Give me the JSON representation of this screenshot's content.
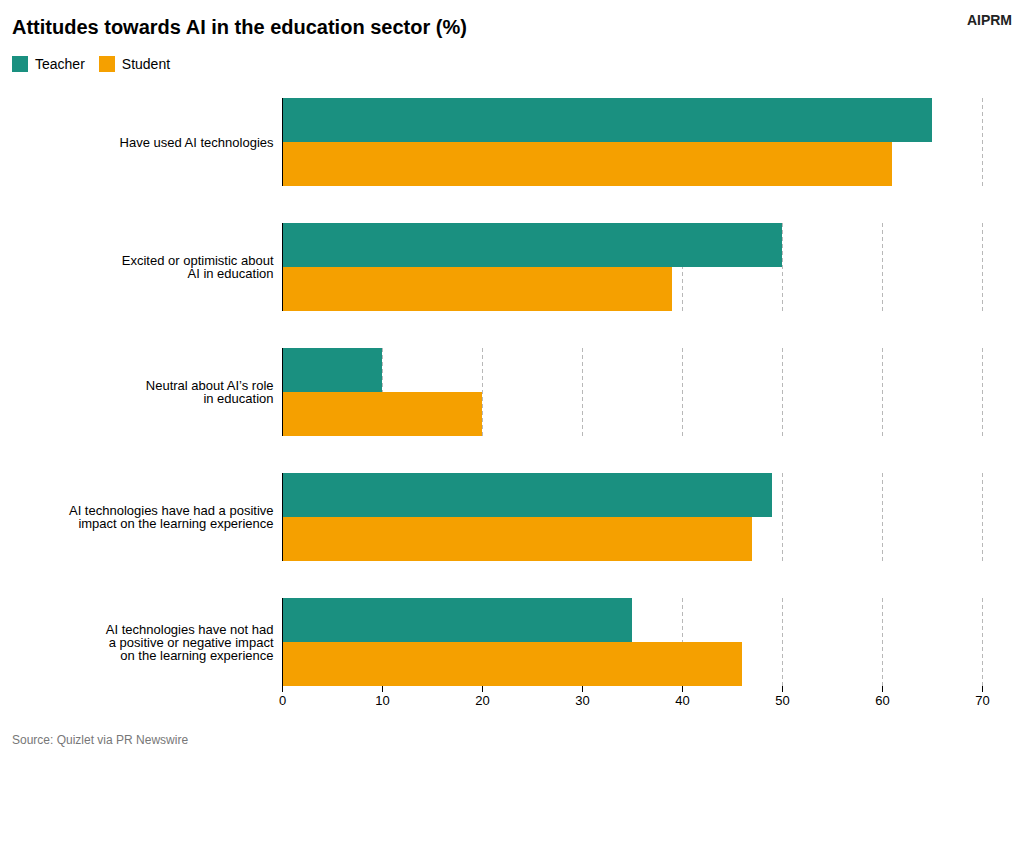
{
  "chart_data": {
    "type": "bar",
    "orientation": "horizontal",
    "title": "Attitudes towards AI in the education sector (%)",
    "categories": [
      "Have used AI technologies",
      "Excited or optimistic about\nAI in education",
      "Neutral about AI’s role\nin education",
      "AI technologies have had a positive\nimpact on the learning experience",
      "AI technologies have not had\na positive or negative impact\non the learning experience"
    ],
    "series": [
      {
        "name": "Teacher",
        "color": "#1a9080",
        "values": [
          65,
          50,
          10,
          49,
          35
        ]
      },
      {
        "name": "Student",
        "color": "#f5a000",
        "values": [
          61,
          39,
          20,
          47,
          46
        ]
      }
    ],
    "xlim": [
      0,
      70
    ],
    "xticks": [
      0,
      10,
      20,
      30,
      40,
      50,
      60,
      70
    ],
    "grid": true,
    "legend": "top-left",
    "annotations": [
      "AIPRM",
      "Source: Quizlet via PR Newswire"
    ]
  }
}
